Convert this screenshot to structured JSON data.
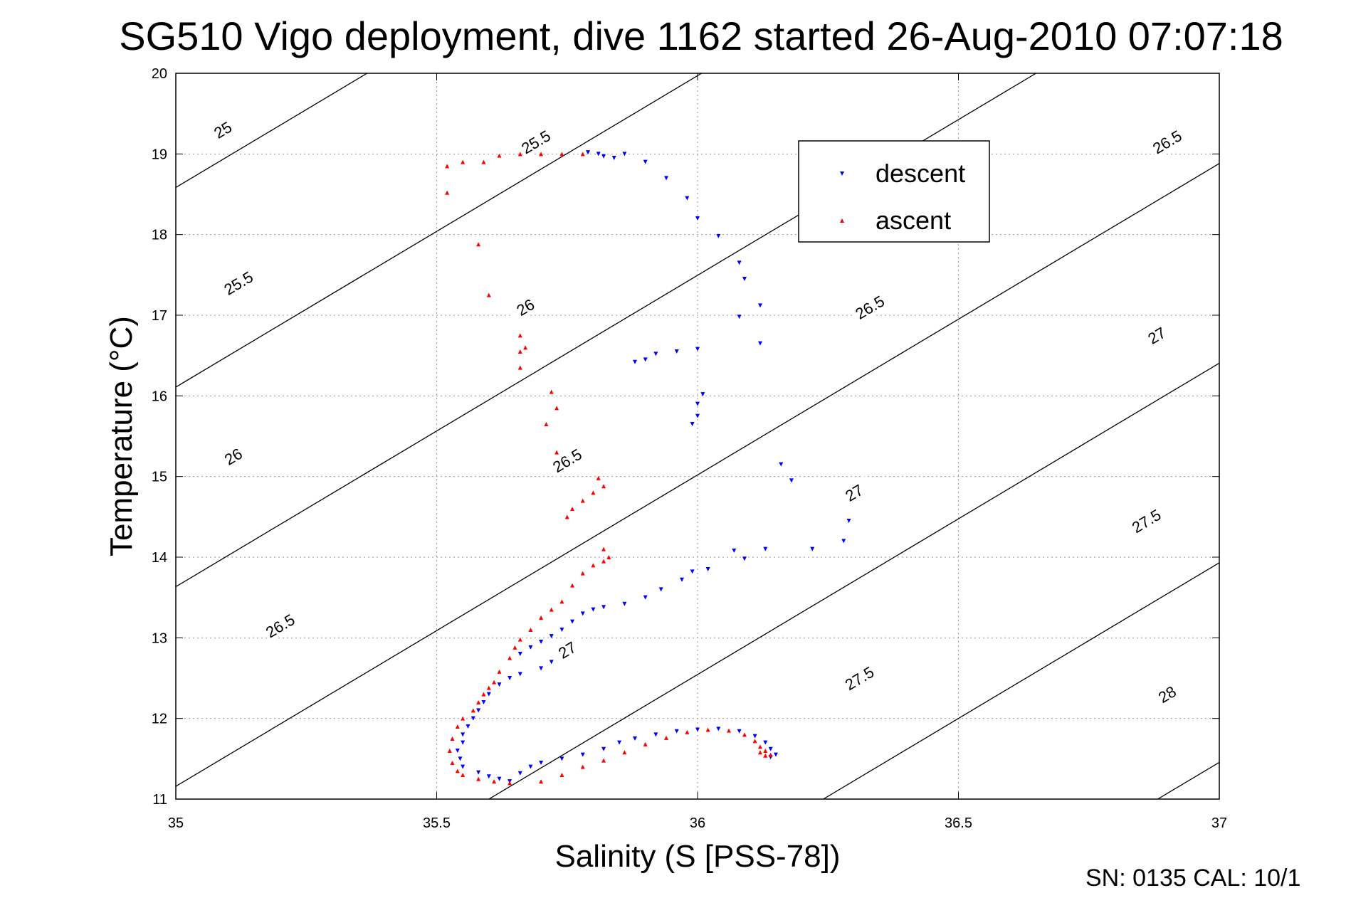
{
  "chart_data": {
    "type": "scatter",
    "title": "SG510 Vigo deployment, dive 1162 started 26-Aug-2010 07:07:18",
    "xlabel": "Salinity (S [PSS-78])",
    "ylabel": "Temperature (°C)",
    "xlim": [
      35,
      37
    ],
    "ylim": [
      11,
      20
    ],
    "x_ticks": [
      35,
      35.5,
      36,
      36.5,
      37
    ],
    "x_tick_labels": [
      "35",
      "35.5",
      "36",
      "36.5",
      "37"
    ],
    "y_ticks": [
      11,
      12,
      13,
      14,
      15,
      16,
      17,
      18,
      19,
      20
    ],
    "y_tick_labels": [
      "11",
      "12",
      "13",
      "14",
      "15",
      "16",
      "17",
      "18",
      "19",
      "20"
    ],
    "grid": true,
    "legend": {
      "placement": "upper-right",
      "entries": [
        "descent",
        "ascent"
      ]
    },
    "isopycnals": [
      {
        "sigma": 25,
        "label": "25",
        "labels_at": [
          [
            35.09,
            19.3
          ]
        ]
      },
      {
        "sigma": 25.5,
        "label": "25.5",
        "labels_at": [
          [
            35.12,
            17.4
          ],
          [
            35.69,
            19.15
          ]
        ]
      },
      {
        "sigma": 26,
        "label": "26",
        "labels_at": [
          [
            35.11,
            15.25
          ],
          [
            35.67,
            17.1
          ]
        ]
      },
      {
        "sigma": 26.5,
        "label": "26.5",
        "labels_at": [
          [
            35.2,
            13.15
          ],
          [
            35.75,
            15.2
          ],
          [
            36.33,
            17.1
          ],
          [
            36.9,
            19.15
          ]
        ]
      },
      {
        "sigma": 27,
        "label": "27",
        "labels_at": [
          [
            35.75,
            12.85
          ],
          [
            36.3,
            14.8
          ],
          [
            36.88,
            16.75
          ]
        ]
      },
      {
        "sigma": 27.5,
        "label": "27.5",
        "labels_at": [
          [
            36.31,
            12.5
          ],
          [
            36.86,
            14.45
          ]
        ]
      },
      {
        "sigma": 28,
        "label": "28",
        "labels_at": [
          [
            36.9,
            12.3
          ]
        ]
      }
    ],
    "series": [
      {
        "name": "descent",
        "color": "#0000ff",
        "marker": "triangle-down",
        "points": [
          [
            35.79,
            19.02
          ],
          [
            35.81,
            19.0
          ],
          [
            35.82,
            18.97
          ],
          [
            35.84,
            18.95
          ],
          [
            35.86,
            19.0
          ],
          [
            35.9,
            18.9
          ],
          [
            35.94,
            18.7
          ],
          [
            35.98,
            18.45
          ],
          [
            36.0,
            18.2
          ],
          [
            36.04,
            17.98
          ],
          [
            36.08,
            17.65
          ],
          [
            36.09,
            17.45
          ],
          [
            36.12,
            17.12
          ],
          [
            36.08,
            16.98
          ],
          [
            36.12,
            16.65
          ],
          [
            36.0,
            16.58
          ],
          [
            35.96,
            16.55
          ],
          [
            35.92,
            16.52
          ],
          [
            35.9,
            16.45
          ],
          [
            35.88,
            16.42
          ],
          [
            36.01,
            16.02
          ],
          [
            36.0,
            15.9
          ],
          [
            36.0,
            15.75
          ],
          [
            35.99,
            15.65
          ],
          [
            36.16,
            15.15
          ],
          [
            36.18,
            14.95
          ],
          [
            36.29,
            14.45
          ],
          [
            36.28,
            14.2
          ],
          [
            36.22,
            14.1
          ],
          [
            36.13,
            14.1
          ],
          [
            36.09,
            13.98
          ],
          [
            36.07,
            14.08
          ],
          [
            36.02,
            13.85
          ],
          [
            35.99,
            13.82
          ],
          [
            35.97,
            13.72
          ],
          [
            35.93,
            13.6
          ],
          [
            35.9,
            13.5
          ],
          [
            35.86,
            13.42
          ],
          [
            35.82,
            13.38
          ],
          [
            35.8,
            13.35
          ],
          [
            35.78,
            13.3
          ],
          [
            35.76,
            13.2
          ],
          [
            35.74,
            13.1
          ],
          [
            35.72,
            13.02
          ],
          [
            35.7,
            12.95
          ],
          [
            35.68,
            12.88
          ],
          [
            35.66,
            12.8
          ],
          [
            35.72,
            12.7
          ],
          [
            35.7,
            12.62
          ],
          [
            35.66,
            12.55
          ],
          [
            35.64,
            12.5
          ],
          [
            35.62,
            12.42
          ],
          [
            35.6,
            12.3
          ],
          [
            35.59,
            12.2
          ],
          [
            35.58,
            12.1
          ],
          [
            35.57,
            12.0
          ],
          [
            35.56,
            11.9
          ],
          [
            35.55,
            11.8
          ],
          [
            35.55,
            11.7
          ],
          [
            35.54,
            11.6
          ],
          [
            35.545,
            11.5
          ],
          [
            35.55,
            11.4
          ],
          [
            35.58,
            11.33
          ],
          [
            35.6,
            11.28
          ],
          [
            35.62,
            11.25
          ],
          [
            35.64,
            11.22
          ],
          [
            35.66,
            11.32
          ],
          [
            35.68,
            11.4
          ],
          [
            35.7,
            11.45
          ],
          [
            35.74,
            11.5
          ],
          [
            35.78,
            11.55
          ],
          [
            35.82,
            11.62
          ],
          [
            35.85,
            11.7
          ],
          [
            35.88,
            11.75
          ],
          [
            35.92,
            11.8
          ],
          [
            35.96,
            11.84
          ],
          [
            36.0,
            11.86
          ],
          [
            36.04,
            11.87
          ],
          [
            36.08,
            11.84
          ],
          [
            36.11,
            11.78
          ],
          [
            36.13,
            11.7
          ],
          [
            36.14,
            11.62
          ],
          [
            36.15,
            11.55
          ],
          [
            36.14,
            11.52
          ]
        ]
      },
      {
        "name": "ascent",
        "color": "#ff0000",
        "marker": "triangle-up",
        "points": [
          [
            35.52,
            18.85
          ],
          [
            35.55,
            18.9
          ],
          [
            35.59,
            18.9
          ],
          [
            35.62,
            18.98
          ],
          [
            35.66,
            19.0
          ],
          [
            35.7,
            19.0
          ],
          [
            35.74,
            19.0
          ],
          [
            35.78,
            19.0
          ],
          [
            35.52,
            18.52
          ],
          [
            35.58,
            17.88
          ],
          [
            35.6,
            17.25
          ],
          [
            35.66,
            16.75
          ],
          [
            35.66,
            16.55
          ],
          [
            35.67,
            16.6
          ],
          [
            35.66,
            16.35
          ],
          [
            35.72,
            16.05
          ],
          [
            35.73,
            15.85
          ],
          [
            35.71,
            15.65
          ],
          [
            35.73,
            15.3
          ],
          [
            35.81,
            14.98
          ],
          [
            35.82,
            14.88
          ],
          [
            35.8,
            14.8
          ],
          [
            35.78,
            14.7
          ],
          [
            35.76,
            14.6
          ],
          [
            35.75,
            14.5
          ],
          [
            35.82,
            14.1
          ],
          [
            35.83,
            14.0
          ],
          [
            35.82,
            13.95
          ],
          [
            35.8,
            13.9
          ],
          [
            35.78,
            13.8
          ],
          [
            35.76,
            13.65
          ],
          [
            35.74,
            13.45
          ],
          [
            35.72,
            13.35
          ],
          [
            35.7,
            13.25
          ],
          [
            35.68,
            13.1
          ],
          [
            35.66,
            12.98
          ],
          [
            35.65,
            12.88
          ],
          [
            35.64,
            12.75
          ],
          [
            35.62,
            12.58
          ],
          [
            35.61,
            12.45
          ],
          [
            35.6,
            12.38
          ],
          [
            35.59,
            12.3
          ],
          [
            35.58,
            12.2
          ],
          [
            35.57,
            12.1
          ],
          [
            35.55,
            12.0
          ],
          [
            35.54,
            11.9
          ],
          [
            35.53,
            11.75
          ],
          [
            35.525,
            11.6
          ],
          [
            35.53,
            11.45
          ],
          [
            35.54,
            11.35
          ],
          [
            35.55,
            11.3
          ],
          [
            35.58,
            11.25
          ],
          [
            35.61,
            11.22
          ],
          [
            35.64,
            11.2
          ],
          [
            35.7,
            11.22
          ],
          [
            35.74,
            11.3
          ],
          [
            35.78,
            11.4
          ],
          [
            35.82,
            11.48
          ],
          [
            35.86,
            11.58
          ],
          [
            35.9,
            11.68
          ],
          [
            35.94,
            11.76
          ],
          [
            35.98,
            11.83
          ],
          [
            36.02,
            11.86
          ],
          [
            36.06,
            11.85
          ],
          [
            36.09,
            11.8
          ],
          [
            36.11,
            11.72
          ],
          [
            36.12,
            11.65
          ],
          [
            36.12,
            11.58
          ],
          [
            36.13,
            11.54
          ],
          [
            36.14,
            11.55
          ],
          [
            36.13,
            11.6
          ]
        ]
      }
    ]
  },
  "footer": {
    "text": "SN: 0135  CAL: 10/1"
  }
}
